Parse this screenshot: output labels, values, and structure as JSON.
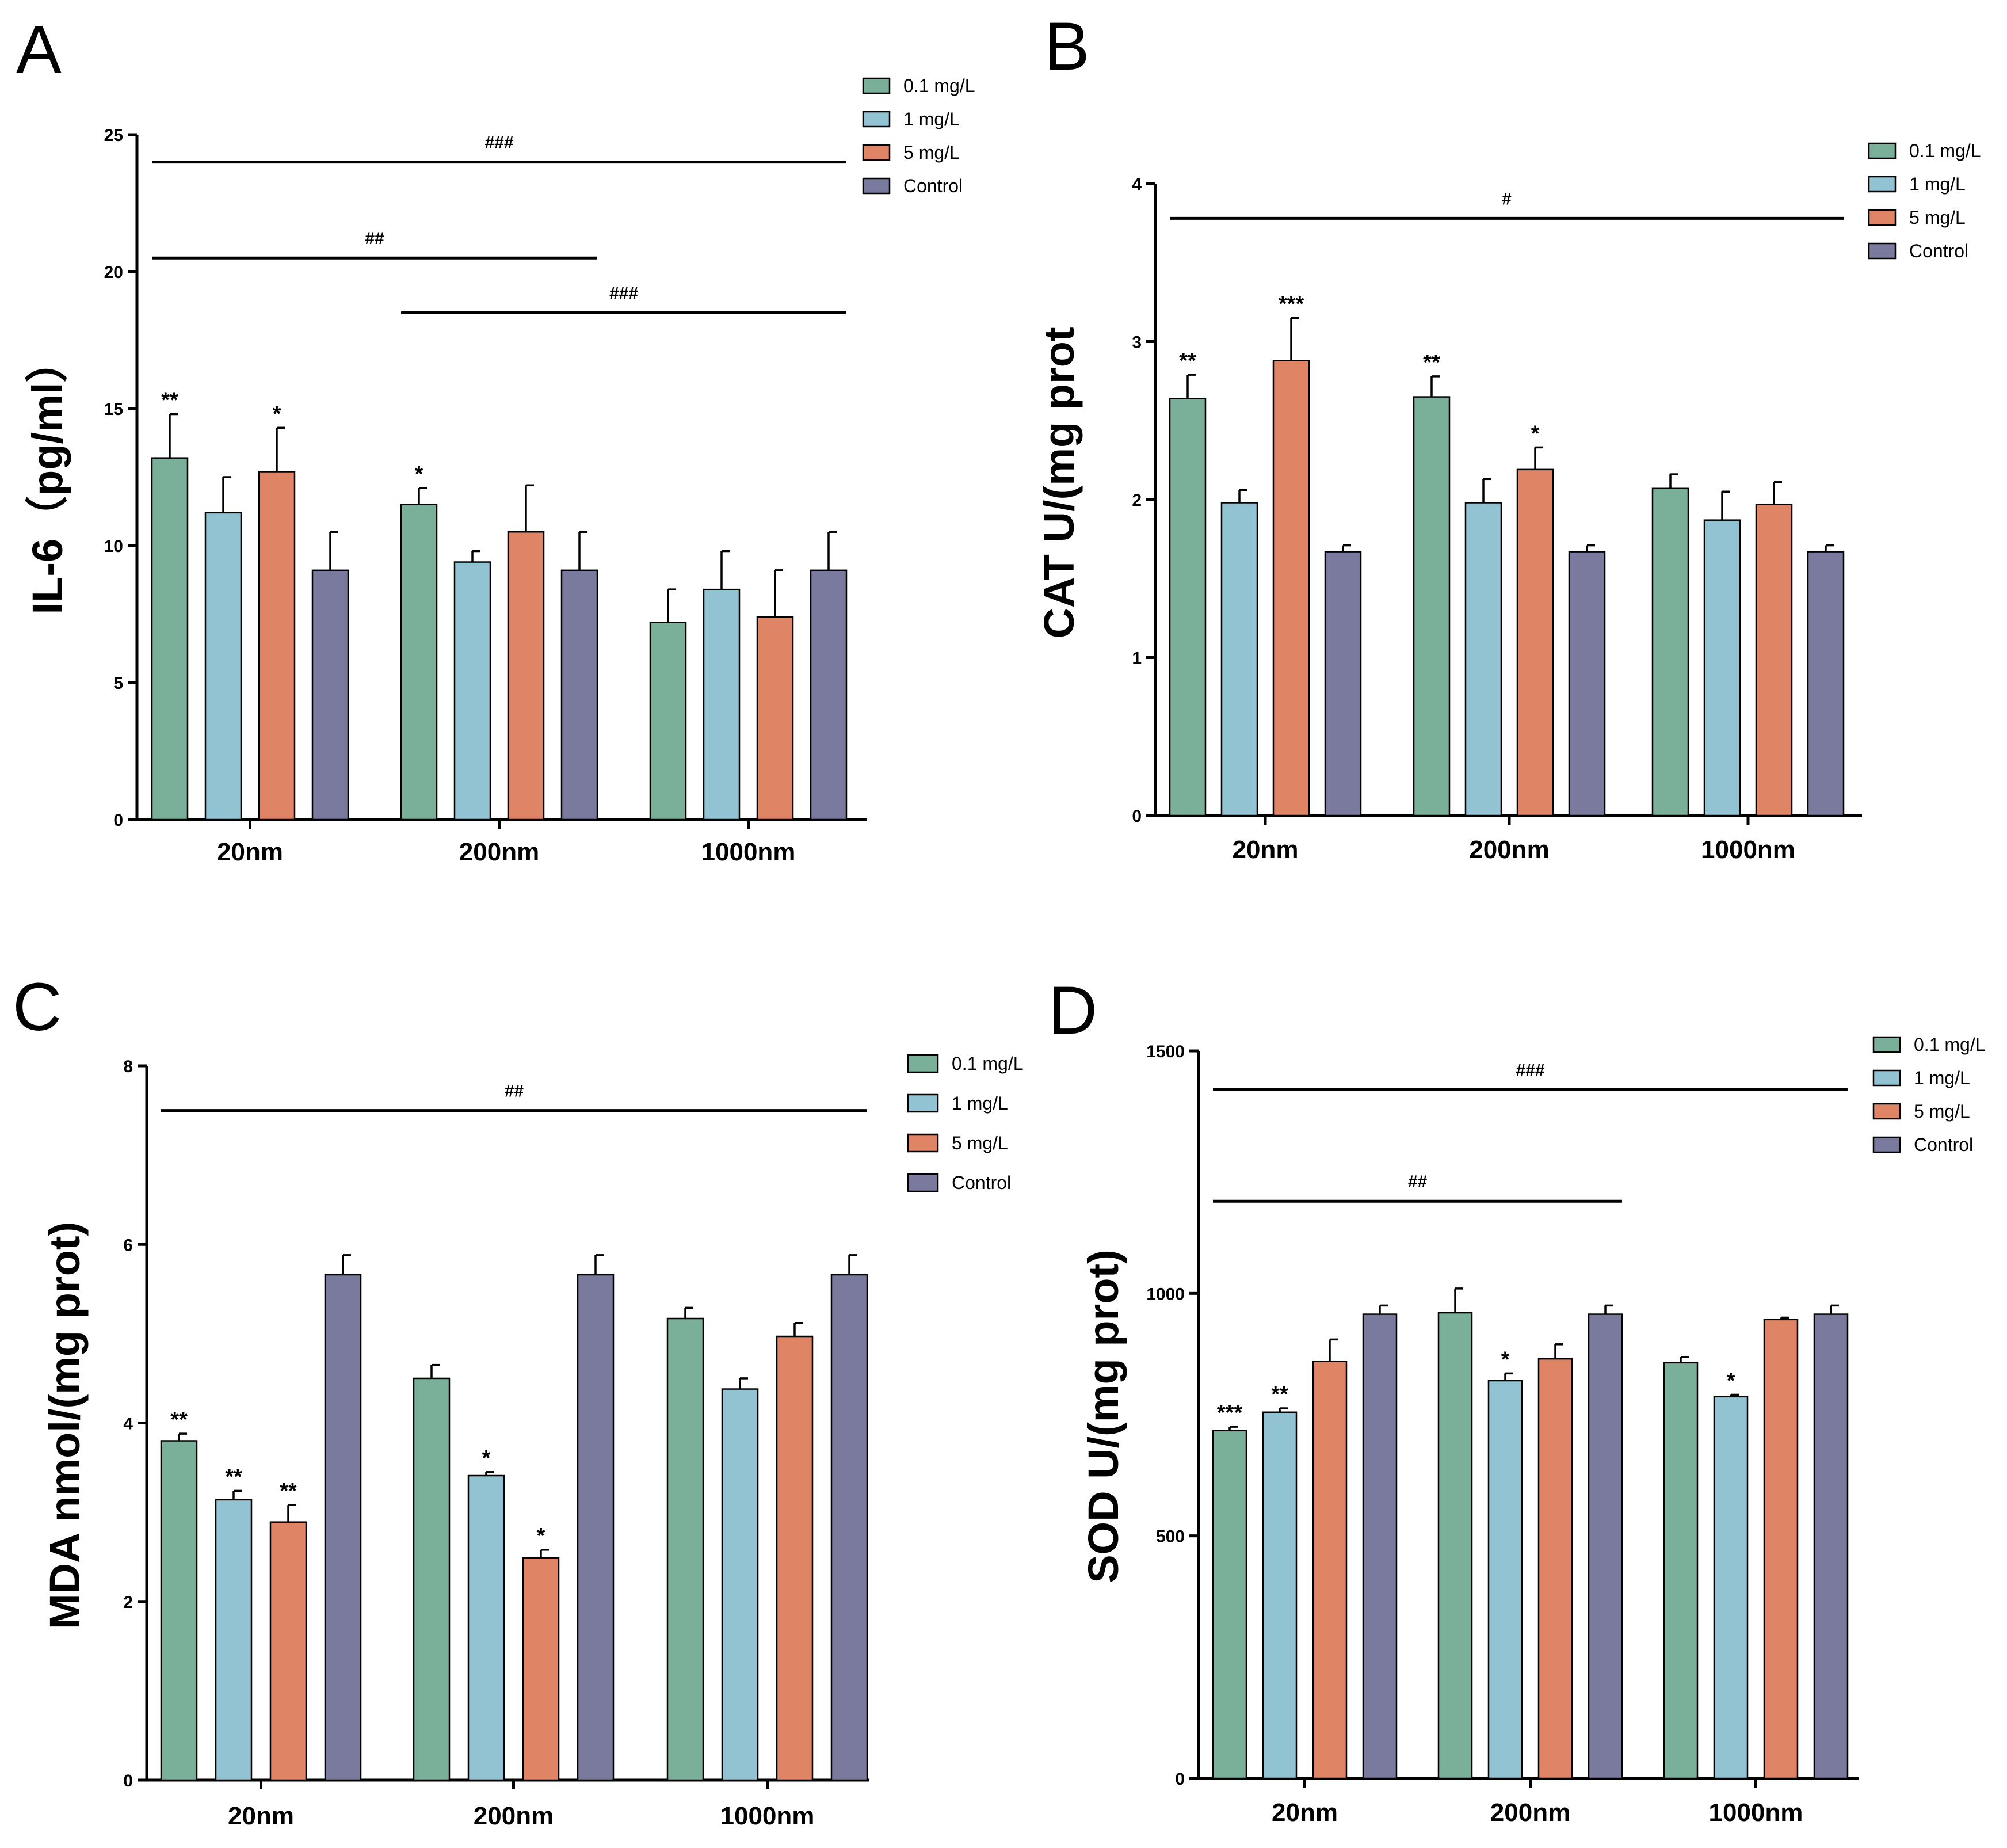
{
  "colors": {
    "0.1 mg/L": "#7aaf99",
    "1 mg/L": "#92c3d3",
    "5 mg/L": "#e08466",
    "Control": "#7a7a9e"
  },
  "chart_data": [
    {
      "panel": "A",
      "type": "bar",
      "ylabel": "IL-6（pg/ml）",
      "ylim": [
        0,
        25
      ],
      "yticks": [
        "0",
        "5",
        "10",
        "15",
        "20",
        "25"
      ],
      "categories": [
        "20nm",
        "200nm",
        "1000nm"
      ],
      "series": [
        {
          "name": "0.1 mg/L",
          "values": [
            13.2,
            11.5,
            7.2
          ],
          "errors": [
            1.6,
            0.6,
            1.2
          ],
          "stars": [
            "**",
            "*",
            ""
          ]
        },
        {
          "name": "1 mg/L",
          "values": [
            11.2,
            9.4,
            8.4
          ],
          "errors": [
            1.3,
            0.4,
            1.4
          ],
          "stars": [
            "",
            "",
            ""
          ]
        },
        {
          "name": "5 mg/L",
          "values": [
            12.7,
            10.5,
            7.4
          ],
          "errors": [
            1.6,
            1.7,
            1.7
          ],
          "stars": [
            "*",
            "",
            ""
          ]
        },
        {
          "name": "Control",
          "values": [
            9.1,
            9.1,
            9.1
          ],
          "errors": [
            1.4,
            1.4,
            1.4
          ],
          "stars": [
            "",
            "",
            ""
          ]
        }
      ],
      "significance": [
        {
          "label": "###",
          "level": 24.0,
          "from": "20nm:0.1 mg/L",
          "to": "1000nm:Control"
        },
        {
          "label": "##",
          "level": 20.5,
          "from": "20nm:0.1 mg/L",
          "to": "200nm:Control"
        },
        {
          "label": "###",
          "level": 18.5,
          "from": "200nm:0.1 mg/L",
          "to": "1000nm:Control"
        }
      ],
      "legend": [
        "0.1 mg/L",
        "1 mg/L",
        "5 mg/L",
        "Control"
      ]
    },
    {
      "panel": "B",
      "type": "bar",
      "ylabel": "CAT U/(mg prot",
      "ylim": [
        0,
        4
      ],
      "yticks": [
        "0",
        "1",
        "2",
        "3",
        "4"
      ],
      "categories": [
        "20nm",
        "200nm",
        "1000nm"
      ],
      "series": [
        {
          "name": "0.1 mg/L",
          "values": [
            2.64,
            2.65,
            2.07
          ],
          "errors": [
            0.15,
            0.13,
            0.09
          ],
          "stars": [
            "**",
            "**",
            ""
          ]
        },
        {
          "name": "1 mg/L",
          "values": [
            1.98,
            1.98,
            1.87
          ],
          "errors": [
            0.08,
            0.15,
            0.18
          ],
          "stars": [
            "",
            "",
            ""
          ]
        },
        {
          "name": "5 mg/L",
          "values": [
            2.88,
            2.19,
            1.97
          ],
          "errors": [
            0.27,
            0.14,
            0.14
          ],
          "stars": [
            "***",
            "*",
            ""
          ]
        },
        {
          "name": "Control",
          "values": [
            1.67,
            1.67,
            1.67
          ],
          "errors": [
            0.04,
            0.04,
            0.04
          ],
          "stars": [
            "",
            "",
            ""
          ]
        }
      ],
      "significance": [
        {
          "label": "#",
          "level": 3.78,
          "from": "20nm:0.1 mg/L",
          "to": "1000nm:Control"
        }
      ],
      "legend": [
        "0.1 mg/L",
        "1 mg/L",
        "5 mg/L",
        "Control"
      ]
    },
    {
      "panel": "C",
      "type": "bar",
      "ylabel": "MDA nmol/(mg prot)",
      "ylim": [
        0,
        8
      ],
      "yticks": [
        "0",
        "2",
        "4",
        "6",
        "8"
      ],
      "categories": [
        "20nm",
        "200nm",
        "1000nm"
      ],
      "series": [
        {
          "name": "0.1 mg/L",
          "values": [
            3.8,
            4.5,
            5.17
          ],
          "errors": [
            0.08,
            0.15,
            0.12
          ],
          "stars": [
            "**",
            "",
            ""
          ]
        },
        {
          "name": "1 mg/L",
          "values": [
            3.14,
            3.41,
            4.38
          ],
          "errors": [
            0.1,
            0.04,
            0.12
          ],
          "stars": [
            "**",
            "*",
            ""
          ]
        },
        {
          "name": "5 mg/L",
          "values": [
            2.89,
            2.49,
            4.97
          ],
          "errors": [
            0.19,
            0.09,
            0.15
          ],
          "stars": [
            "**",
            "*",
            ""
          ]
        },
        {
          "name": "Control",
          "values": [
            5.66,
            5.66,
            5.66
          ],
          "errors": [
            0.22,
            0.22,
            0.22
          ],
          "stars": [
            "",
            "",
            ""
          ]
        }
      ],
      "significance": [
        {
          "label": "##",
          "level": 7.5,
          "from": "20nm:0.1 mg/L",
          "to": "1000nm:Control"
        }
      ],
      "legend": [
        "0.1 mg/L",
        "1 mg/L",
        "5 mg/L",
        "Control"
      ]
    },
    {
      "panel": "D",
      "type": "bar",
      "ylabel": "SOD U/(mg prot)",
      "ylim": [
        0,
        1500
      ],
      "yticks": [
        "0",
        "500",
        "1000",
        "1500"
      ],
      "categories": [
        "20nm",
        "200nm",
        "1000nm"
      ],
      "series": [
        {
          "name": "0.1 mg/L",
          "values": [
            717,
            960,
            857
          ],
          "errors": [
            8,
            50,
            12
          ],
          "stars": [
            "***",
            "",
            ""
          ]
        },
        {
          "name": "1 mg/L",
          "values": [
            755,
            820,
            787
          ],
          "errors": [
            8,
            15,
            4
          ],
          "stars": [
            "**",
            "*",
            "*"
          ]
        },
        {
          "name": "5 mg/L",
          "values": [
            860,
            865,
            946
          ],
          "errors": [
            45,
            30,
            4
          ],
          "stars": [
            "",
            "",
            ""
          ]
        },
        {
          "name": "Control",
          "values": [
            957,
            957,
            957
          ],
          "errors": [
            18,
            18,
            18
          ],
          "stars": [
            "",
            "",
            ""
          ]
        }
      ],
      "significance": [
        {
          "label": "###",
          "level": 1420,
          "from": "20nm:0.1 mg/L",
          "to": "1000nm:Control"
        },
        {
          "label": "##",
          "level": 1190,
          "from": "20nm:0.1 mg/L",
          "to": "200nm:Control"
        }
      ],
      "legend": [
        "0.1 mg/L",
        "1 mg/L",
        "5 mg/L",
        "Control"
      ]
    }
  ]
}
